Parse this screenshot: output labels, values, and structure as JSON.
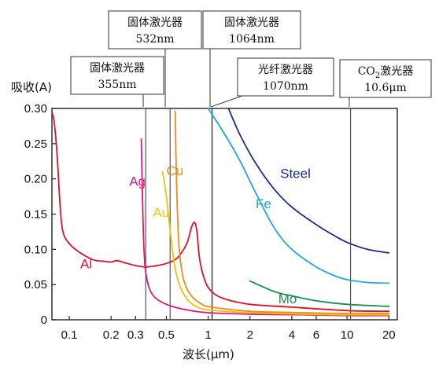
{
  "chart_data": {
    "type": "line",
    "title": "",
    "xlabel": "波长(μm)",
    "ylabel": "吸收(A)",
    "xscale": "log",
    "xlim": [
      0.075,
      23
    ],
    "ylim": [
      0,
      0.3
    ],
    "xticks": [
      0.1,
      0.2,
      0.3,
      0.5,
      1,
      2,
      4,
      6,
      10,
      20
    ],
    "xtick_labels": [
      "0.1",
      "0.2",
      "0.3",
      "0.5",
      "1",
      "2",
      "4",
      "6",
      "10",
      "20"
    ],
    "yticks": [
      0,
      0.05,
      0.1,
      0.15,
      0.2,
      0.25,
      0.3
    ],
    "ytick_labels": [
      "0",
      "0.05",
      "0.10",
      "0.15",
      "0.20",
      "0.25",
      "0.30"
    ],
    "grid": false,
    "legend": "inline labels",
    "series": [
      {
        "name": "Al",
        "color": "#e0102a",
        "points": [
          [
            0.075,
            0.295
          ],
          [
            0.078,
            0.28
          ],
          [
            0.082,
            0.23
          ],
          [
            0.086,
            0.16
          ],
          [
            0.09,
            0.125
          ],
          [
            0.1,
            0.108
          ],
          [
            0.12,
            0.095
          ],
          [
            0.15,
            0.085
          ],
          [
            0.18,
            0.083
          ],
          [
            0.2,
            0.082
          ],
          [
            0.22,
            0.084
          ],
          [
            0.25,
            0.081
          ],
          [
            0.3,
            0.077
          ],
          [
            0.35,
            0.075
          ],
          [
            0.4,
            0.076
          ],
          [
            0.5,
            0.08
          ],
          [
            0.6,
            0.088
          ],
          [
            0.7,
            0.108
          ],
          [
            0.76,
            0.132
          ],
          [
            0.8,
            0.138
          ],
          [
            0.83,
            0.125
          ],
          [
            0.87,
            0.085
          ],
          [
            0.95,
            0.055
          ],
          [
            1.06,
            0.04
          ],
          [
            1.3,
            0.03
          ],
          [
            2,
            0.022
          ],
          [
            4,
            0.018
          ],
          [
            10,
            0.013
          ],
          [
            20,
            0.012
          ]
        ],
        "label_at": [
          0.12,
          0.08
        ]
      },
      {
        "name": "Ag",
        "color": "#e0167e",
        "points": [
          [
            0.33,
            0.257
          ],
          [
            0.336,
            0.18
          ],
          [
            0.345,
            0.1
          ],
          [
            0.36,
            0.06
          ],
          [
            0.4,
            0.035
          ],
          [
            0.5,
            0.022
          ],
          [
            0.7,
            0.014
          ],
          [
            1,
            0.01
          ],
          [
            2,
            0.008
          ],
          [
            5,
            0.007
          ],
          [
            10,
            0.006
          ],
          [
            20,
            0.006
          ]
        ],
        "label_at": [
          0.27,
          0.197
        ]
      },
      {
        "name": "Au",
        "color": "#f5c400",
        "points": [
          [
            0.47,
            0.21
          ],
          [
            0.5,
            0.175
          ],
          [
            0.53,
            0.13
          ],
          [
            0.57,
            0.08
          ],
          [
            0.62,
            0.05
          ],
          [
            0.7,
            0.03
          ],
          [
            0.8,
            0.02
          ],
          [
            1,
            0.014
          ],
          [
            2,
            0.01
          ],
          [
            5,
            0.008
          ],
          [
            10,
            0.007
          ],
          [
            20,
            0.007
          ]
        ],
        "label_at": [
          0.4,
          0.153
        ]
      },
      {
        "name": "Cu",
        "color": "#f08a1c",
        "points": [
          [
            0.58,
            0.296
          ],
          [
            0.585,
            0.24
          ],
          [
            0.595,
            0.18
          ],
          [
            0.61,
            0.12
          ],
          [
            0.63,
            0.085
          ],
          [
            0.67,
            0.055
          ],
          [
            0.75,
            0.035
          ],
          [
            0.9,
            0.022
          ],
          [
            1.06,
            0.018
          ],
          [
            2,
            0.012
          ],
          [
            5,
            0.01
          ],
          [
            10,
            0.009
          ],
          [
            20,
            0.009
          ]
        ],
        "label_at": [
          0.5,
          0.212
        ]
      },
      {
        "name": "Steel",
        "color": "#1b2f8e",
        "points": [
          [
            1.4,
            0.3
          ],
          [
            1.7,
            0.262
          ],
          [
            2.2,
            0.222
          ],
          [
            3,
            0.185
          ],
          [
            4,
            0.16
          ],
          [
            6,
            0.135
          ],
          [
            8,
            0.12
          ],
          [
            10,
            0.11
          ],
          [
            14,
            0.1
          ],
          [
            20,
            0.095
          ]
        ],
        "label_at": [
          3.3,
          0.208
        ]
      },
      {
        "name": "Fe",
        "color": "#21a7df",
        "points": [
          [
            1.0,
            0.3
          ],
          [
            1.3,
            0.265
          ],
          [
            1.7,
            0.225
          ],
          [
            2.2,
            0.18
          ],
          [
            3,
            0.13
          ],
          [
            4,
            0.1
          ],
          [
            6,
            0.075
          ],
          [
            8,
            0.063
          ],
          [
            10,
            0.057
          ],
          [
            14,
            0.053
          ],
          [
            20,
            0.052
          ]
        ],
        "label_at": [
          2.2,
          0.165
        ]
      },
      {
        "name": "Mo",
        "color": "#14924a",
        "points": [
          [
            2.0,
            0.055
          ],
          [
            3,
            0.04
          ],
          [
            4,
            0.034
          ],
          [
            6,
            0.027
          ],
          [
            10,
            0.022
          ],
          [
            20,
            0.019
          ]
        ],
        "label_at": [
          3.2,
          0.03
        ]
      }
    ],
    "reference_lines": [
      {
        "x": 0.355,
        "label_line1": "固体激光器",
        "label_line2": "355nm"
      },
      {
        "x": 0.532,
        "label_line1": "固体激光器",
        "label_line2": "532nm"
      },
      {
        "x": 1.064,
        "label_line1": "固体激光器",
        "label_line2": "1064nm"
      },
      {
        "x": 1.07,
        "label_line1": "光纤激光器",
        "label_line2": "1070nm"
      },
      {
        "x": 10.6,
        "label_line1": "CO",
        "label_sub": "2",
        "label_line1_rest": "激光器",
        "label_line2": "10.6μm"
      }
    ]
  }
}
